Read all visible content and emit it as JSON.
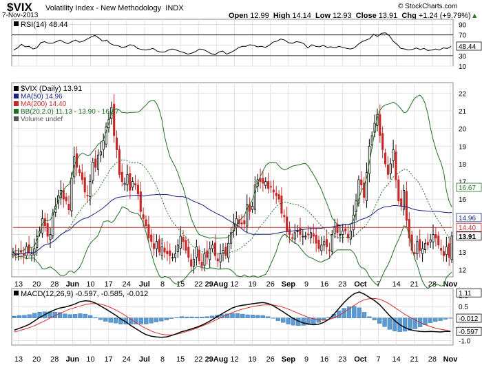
{
  "header": {
    "ticker": "$VIX",
    "name": "Volatility Index - New Methodology",
    "exchange": "INDX",
    "date": "7-Nov-2013",
    "open_label": "Open",
    "open": "12.99",
    "high_label": "High",
    "high": "14.14",
    "low_label": "Low",
    "low": "12.93",
    "close_label": "Close",
    "close": "13.91",
    "chg_label": "Chg",
    "chg": "+1.24 (+9.79%)",
    "chg_arrow": "▲",
    "credit": "© StockCharts.com"
  },
  "chart_data": [
    {
      "type": "line",
      "panel": "rsi",
      "legend": "RSI(14) 48.44",
      "current_value_label": "48.44",
      "ylim": [
        10,
        100
      ],
      "y_ticks": [
        10,
        30,
        50,
        70,
        90
      ],
      "reference_lines": [
        30,
        70
      ],
      "series": [
        {
          "name": "RSI(14)",
          "color": "#000000",
          "values": [
            41,
            45,
            52,
            47,
            48,
            43,
            45,
            55,
            57,
            54,
            54,
            57,
            60,
            56,
            53,
            57,
            60,
            56,
            58,
            62,
            66,
            69,
            64,
            58,
            60,
            53,
            50,
            49,
            46,
            47,
            51,
            50,
            44,
            42,
            41,
            42,
            44,
            39,
            37,
            37,
            41,
            43,
            41,
            38,
            36,
            33,
            35,
            38,
            43,
            42,
            38,
            34,
            32,
            37,
            39,
            33,
            36,
            40,
            45,
            48,
            48,
            51,
            50,
            47,
            48,
            46,
            50,
            56,
            58,
            62,
            60,
            55,
            54,
            57,
            56,
            53,
            45,
            51,
            48,
            47,
            50,
            46,
            47,
            45,
            48,
            46,
            44,
            43,
            45,
            52,
            57,
            60,
            63,
            71,
            67,
            73,
            74,
            69,
            58,
            52,
            44,
            43,
            41,
            42,
            45,
            42,
            44,
            40,
            41,
            43,
            41,
            45,
            44,
            48
          ]
        }
      ]
    },
    {
      "type": "candlestick",
      "panel": "price",
      "legend": [
        "$VIX (Daily) 13.91",
        "MA(50) 14.96",
        "MA(200) 14.40",
        "BB(20,2.0) 11.13 - 13.90 - 16.67",
        "Volume undef"
      ],
      "ylim": [
        11.6,
        22.6
      ],
      "y_ticks": [
        12,
        13,
        14,
        15,
        16,
        17,
        18,
        19,
        20,
        21,
        22
      ],
      "value_labels": [
        {
          "text": "16.67",
          "value": 16.67,
          "color": "#1f6e1f"
        },
        {
          "text": "14.96",
          "value": 14.96,
          "color": "#1a237e"
        },
        {
          "text": "14.40",
          "value": 14.4,
          "color": "#c62828"
        },
        {
          "text": "13.91",
          "value": 13.91,
          "color": "#000000"
        }
      ],
      "close": [
        13.0,
        12.8,
        12.9,
        13.0,
        12.8,
        13.3,
        13.0,
        12.9,
        13.2,
        13.9,
        14.2,
        14.9,
        14.5,
        13.9,
        14.0,
        15.2,
        15.6,
        16.2,
        16.5,
        16.0,
        15.9,
        15.4,
        17.2,
        18.4,
        17.8,
        17.5,
        17.1,
        16.4,
        16.2,
        17.0,
        18.1,
        17.8,
        18.5,
        18.7,
        19.3,
        20.1,
        20.5,
        21.2,
        19.6,
        18.8,
        17.4,
        17.0,
        16.9,
        17.4,
        16.5,
        17.0,
        16.8,
        16.3,
        15.3,
        14.9,
        14.5,
        13.8,
        13.6,
        13.2,
        13.6,
        13.0,
        13.3,
        13.0,
        12.9,
        12.8,
        12.7,
        12.9,
        13.4,
        13.9,
        13.6,
        13.1,
        12.7,
        12.2,
        12.6,
        13.3,
        12.5,
        12.2,
        12.9,
        12.7,
        13.2,
        13.4,
        12.8,
        12.5,
        12.9,
        13.1,
        12.8,
        13.5,
        14.1,
        14.6,
        14.9,
        14.6,
        14.6,
        14.6,
        15.7,
        15.3,
        15.6,
        16.8,
        17.1,
        17.0,
        16.9,
        17.0,
        16.6,
        16.7,
        16.4,
        16.2,
        16.0,
        15.2,
        15.0,
        14.2,
        14.0,
        13.8,
        14.1,
        14.2,
        14.0,
        13.9,
        13.9,
        14.0,
        14.1,
        13.9,
        13.5,
        13.2,
        13.4,
        13.6,
        13.3,
        13.1,
        14.0,
        14.4,
        14.1,
        14.0,
        14.2,
        14.2,
        13.8,
        14.2,
        15.1,
        15.9,
        17.1,
        16.8,
        16.1,
        17.5,
        19.0,
        19.6,
        20.3,
        20.8,
        19.6,
        18.8,
        18.0,
        17.4,
        18.0,
        18.8,
        17.1,
        15.9,
        15.6,
        16.5,
        14.8,
        13.8,
        13.1,
        12.9,
        13.6,
        13.1,
        13.2,
        13.5,
        13.4,
        13.7,
        14.0,
        13.8,
        13.4,
        13.1,
        12.8,
        13.3,
        12.7,
        13.91
      ]
    },
    {
      "type": "line",
      "panel": "macd",
      "legend": "MACD(12,26,9) -0.597, -0.585, -0.012",
      "value_labels": [
        "1.11",
        "-0.012",
        "-0.597"
      ],
      "ylim": [
        -1.2,
        1.3
      ],
      "y_ticks": [
        -1.0,
        -0.5,
        0.0,
        0.5,
        1.0
      ],
      "series": [
        {
          "name": "MACD",
          "color": "#000000",
          "values": [
            -0.54,
            -0.46,
            -0.38,
            -0.28,
            -0.13,
            0.02,
            0.14,
            0.26,
            0.36,
            0.44,
            0.48,
            0.54,
            0.62,
            0.72,
            0.76,
            0.74,
            0.66,
            0.53,
            0.4,
            0.26,
            0.12,
            -0.04,
            -0.18,
            -0.34,
            -0.48,
            -0.62,
            -0.74,
            -0.81,
            -0.84,
            -0.86,
            -0.84,
            -0.78,
            -0.7,
            -0.61,
            -0.55,
            -0.48,
            -0.41,
            -0.32,
            -0.21,
            -0.08,
            0.06,
            0.19,
            0.32,
            0.44,
            0.52,
            0.56,
            0.59,
            0.63,
            0.66,
            0.68,
            0.64,
            0.55,
            0.41,
            0.27,
            0.12,
            -0.02,
            -0.14,
            -0.22,
            -0.27,
            -0.3,
            -0.28,
            -0.2,
            -0.06,
            0.16,
            0.42,
            0.68,
            0.9,
            1.07,
            1.15,
            1.05,
            0.91,
            0.77,
            0.59,
            0.35,
            0.1,
            -0.12,
            -0.3,
            -0.43,
            -0.52,
            -0.57,
            -0.6,
            -0.61,
            -0.6,
            -0.61,
            -0.62,
            -0.6,
            -0.597
          ]
        },
        {
          "name": "Signal",
          "color": "#d32f2f",
          "values": [
            -0.62,
            -0.57,
            -0.5,
            -0.43,
            -0.34,
            -0.24,
            -0.13,
            -0.01,
            0.1,
            0.2,
            0.3,
            0.39,
            0.46,
            0.53,
            0.59,
            0.63,
            0.64,
            0.61,
            0.55,
            0.46,
            0.35,
            0.23,
            0.09,
            -0.06,
            -0.21,
            -0.35,
            -0.47,
            -0.58,
            -0.66,
            -0.72,
            -0.75,
            -0.75,
            -0.72,
            -0.67,
            -0.6,
            -0.53,
            -0.45,
            -0.36,
            -0.27,
            -0.17,
            -0.06,
            0.04,
            0.14,
            0.24,
            0.32,
            0.39,
            0.45,
            0.5,
            0.54,
            0.57,
            0.58,
            0.57,
            0.53,
            0.47,
            0.39,
            0.3,
            0.2,
            0.11,
            0.03,
            -0.04,
            -0.08,
            -0.09,
            -0.07,
            0.0,
            0.11,
            0.25,
            0.4,
            0.55,
            0.7,
            0.8,
            0.85,
            0.86,
            0.83,
            0.74,
            0.61,
            0.46,
            0.31,
            0.16,
            0.03,
            -0.09,
            -0.2,
            -0.3,
            -0.38,
            -0.45,
            -0.5,
            -0.54,
            -0.585
          ]
        }
      ]
    }
  ],
  "x_axis_labels": [
    "13",
    "20",
    "28",
    "Jun",
    "10",
    "17",
    "24",
    "Jul",
    "8",
    "15",
    "22",
    "29Aug",
    "12",
    "19",
    "26",
    "Sep",
    "9",
    "16",
    "23",
    "Oct",
    "7",
    "14",
    "21",
    "28",
    "Nov"
  ]
}
